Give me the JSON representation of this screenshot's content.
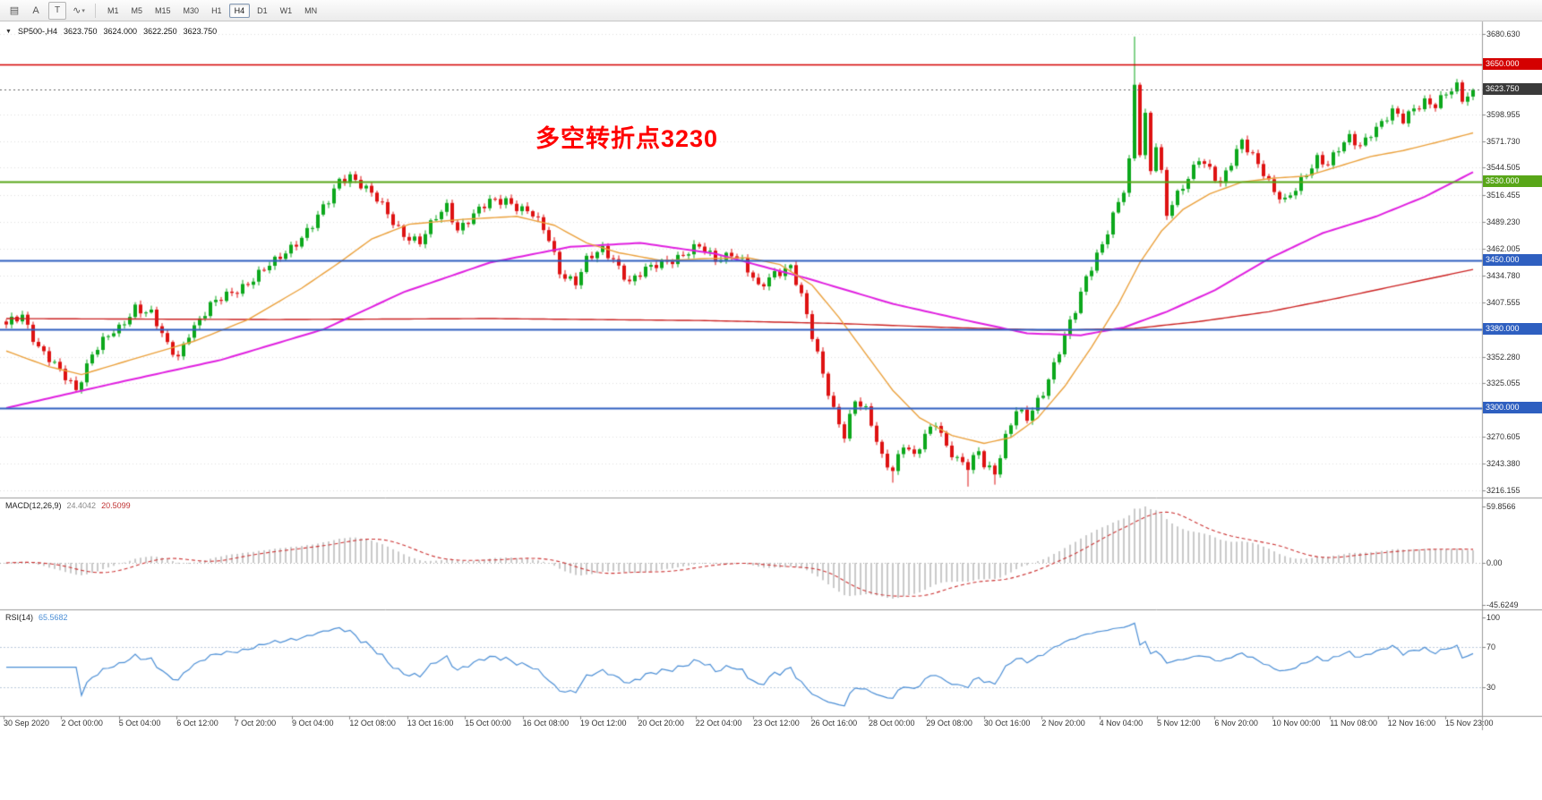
{
  "toolbar": {
    "tools": [
      {
        "name": "charts-list-icon",
        "glyph": "▤",
        "boxed": false,
        "caret": false
      },
      {
        "name": "cursor-tool-a-icon",
        "glyph": "A",
        "boxed": false,
        "caret": false
      },
      {
        "name": "text-tool-icon",
        "glyph": "T",
        "boxed": true,
        "caret": false
      },
      {
        "name": "shapes-tool-icon",
        "glyph": "∿",
        "boxed": false,
        "caret": true
      }
    ],
    "timeframes": [
      {
        "label": "M1",
        "active": false
      },
      {
        "label": "M5",
        "active": false
      },
      {
        "label": "M15",
        "active": false
      },
      {
        "label": "M30",
        "active": false
      },
      {
        "label": "H1",
        "active": false
      },
      {
        "label": "H4",
        "active": true
      },
      {
        "label": "D1",
        "active": false
      },
      {
        "label": "W1",
        "active": false
      },
      {
        "label": "MN",
        "active": false
      }
    ]
  },
  "chart": {
    "header": {
      "collapse_icon": "▼",
      "symbol_tf": "SP500-,H4",
      "open": "3623.750",
      "high": "3624.000",
      "low": "3622.250",
      "close": "3623.750"
    },
    "annotation": {
      "text": "多空转折点3230",
      "color": "#ff0000"
    },
    "y_axis": {
      "plain": [
        {
          "text": "3680.630",
          "price": 3680.63
        },
        {
          "text": "3598.955",
          "price": 3598.955
        },
        {
          "text": "3571.730",
          "price": 3571.73
        },
        {
          "text": "3544.505",
          "price": 3544.505
        },
        {
          "text": "3516.455",
          "price": 3516.455
        },
        {
          "text": "3489.230",
          "price": 3489.23
        },
        {
          "text": "3462.005",
          "price": 3462.005
        },
        {
          "text": "3434.780",
          "price": 3434.78
        },
        {
          "text": "3407.555",
          "price": 3407.555
        },
        {
          "text": "3352.280",
          "price": 3352.28
        },
        {
          "text": "3325.055",
          "price": 3325.055
        },
        {
          "text": "3270.605",
          "price": 3270.605
        },
        {
          "text": "3243.380",
          "price": 3243.38
        },
        {
          "text": "3216.155",
          "price": 3216.155
        }
      ],
      "badges": [
        {
          "text": "3650.000",
          "price": 3650.0,
          "color": "#d40000",
          "name": "resistance-3650-badge"
        },
        {
          "text": "3623.750",
          "price": 3623.75,
          "color": "#3a3a3a",
          "name": "current-price-badge"
        },
        {
          "text": "3530.000",
          "price": 3530.0,
          "color": "#58a618",
          "name": "support-3530-badge"
        },
        {
          "text": "3450.000",
          "price": 3450.0,
          "color": "#2e5fc0",
          "name": "level-3450-badge"
        },
        {
          "text": "3380.000",
          "price": 3380.0,
          "color": "#2e5fc0",
          "name": "level-3380-badge"
        },
        {
          "text": "3300.000",
          "price": 3300.0,
          "color": "#2e5fc0",
          "name": "level-3300-badge"
        }
      ]
    },
    "x_axis": {
      "labels": [
        "30 Sep 2020",
        "2 Oct 00:00",
        "5 Oct 04:00",
        "6 Oct 12:00",
        "7 Oct 20:00",
        "9 Oct 04:00",
        "12 Oct 08:00",
        "13 Oct 16:00",
        "15 Oct 00:00",
        "16 Oct 08:00",
        "19 Oct 12:00",
        "20 Oct 20:00",
        "22 Oct 04:00",
        "23 Oct 12:00",
        "26 Oct 16:00",
        "28 Oct 00:00",
        "29 Oct 08:00",
        "30 Oct 16:00",
        "2 Nov 20:00",
        "4 Nov 04:00",
        "5 Nov 12:00",
        "6 Nov 20:00",
        "10 Nov 00:00",
        "11 Nov 08:00",
        "12 Nov 16:00",
        "15 Nov 23:00"
      ]
    }
  },
  "indicators": {
    "macd": {
      "title": "MACD(12,26,9)",
      "value_main": "24.4042",
      "value_signal": "20.5099",
      "axis": [
        "59.8566",
        "0.00",
        "-45.6249"
      ],
      "fast": 12,
      "slow": 26,
      "signal": 9,
      "histogram_color": "#c9c9c9",
      "signal_color": "#cc3333"
    },
    "rsi": {
      "title": "RSI(14)",
      "value": "65.5682",
      "axis": [
        "100",
        "70",
        "30"
      ],
      "period": 14,
      "levels": [
        70,
        30
      ],
      "color": "#4c8fd6",
      "level_color": "#bccbdc"
    }
  },
  "chart_data": {
    "type": "candlestick",
    "symbol": "SP500-",
    "timeframe": "H4",
    "ohlc_current": {
      "open": 3623.75,
      "high": 3624.0,
      "low": 3622.25,
      "close": 3623.75
    },
    "ylim": [
      3216.155,
      3680.63
    ],
    "bars": 274,
    "current_price": 3623.75,
    "candle_up_color": "#0ca81c",
    "candle_down_color": "#de1212",
    "levels": [
      {
        "price": 3650.0,
        "color": "#d40000"
      },
      {
        "price": 3530.0,
        "color": "#58a618"
      },
      {
        "price": 3450.0,
        "color": "#2e5fc0"
      },
      {
        "price": 3380.0,
        "color": "#2e5fc0"
      },
      {
        "price": 3300.0,
        "color": "#2e5fc0"
      }
    ],
    "close_anchors": [
      [
        0,
        3385
      ],
      [
        3,
        3396
      ],
      [
        6,
        3362
      ],
      [
        9,
        3342
      ],
      [
        13,
        3320
      ],
      [
        16,
        3356
      ],
      [
        19,
        3372
      ],
      [
        21,
        3380
      ],
      [
        24,
        3404
      ],
      [
        27,
        3396
      ],
      [
        30,
        3362
      ],
      [
        32,
        3352
      ],
      [
        34,
        3378
      ],
      [
        38,
        3403
      ],
      [
        42,
        3418
      ],
      [
        46,
        3432
      ],
      [
        50,
        3448
      ],
      [
        54,
        3470
      ],
      [
        57,
        3486
      ],
      [
        60,
        3510
      ],
      [
        62,
        3532
      ],
      [
        64,
        3538
      ],
      [
        66,
        3528
      ],
      [
        69,
        3511
      ],
      [
        72,
        3490
      ],
      [
        74,
        3478
      ],
      [
        77,
        3468
      ],
      [
        80,
        3493
      ],
      [
        82,
        3506
      ],
      [
        84,
        3483
      ],
      [
        87,
        3496
      ],
      [
        90,
        3509
      ],
      [
        93,
        3513
      ],
      [
        95,
        3506
      ],
      [
        98,
        3496
      ],
      [
        101,
        3472
      ],
      [
        103,
        3440
      ],
      [
        106,
        3428
      ],
      [
        108,
        3449
      ],
      [
        111,
        3461
      ],
      [
        113,
        3453
      ],
      [
        116,
        3428
      ],
      [
        119,
        3439
      ],
      [
        122,
        3449
      ],
      [
        126,
        3456
      ],
      [
        129,
        3463
      ],
      [
        132,
        3452
      ],
      [
        135,
        3459
      ],
      [
        137,
        3448
      ],
      [
        140,
        3421
      ],
      [
        143,
        3439
      ],
      [
        146,
        3444
      ],
      [
        148,
        3412
      ],
      [
        150,
        3372
      ],
      [
        152,
        3336
      ],
      [
        154,
        3300
      ],
      [
        156,
        3272
      ],
      [
        158,
        3306
      ],
      [
        160,
        3296
      ],
      [
        161,
        3284
      ],
      [
        163,
        3252
      ],
      [
        165,
        3238
      ],
      [
        167,
        3262
      ],
      [
        169,
        3248
      ],
      [
        171,
        3272
      ],
      [
        173,
        3288
      ],
      [
        175,
        3262
      ],
      [
        177,
        3246
      ],
      [
        179,
        3238
      ],
      [
        181,
        3256
      ],
      [
        182,
        3244
      ],
      [
        184,
        3236
      ],
      [
        186,
        3270
      ],
      [
        188,
        3296
      ],
      [
        190,
        3288
      ],
      [
        193,
        3318
      ],
      [
        195,
        3345
      ],
      [
        197,
        3372
      ],
      [
        199,
        3398
      ],
      [
        201,
        3432
      ],
      [
        203,
        3458
      ],
      [
        204,
        3468
      ],
      [
        206,
        3496
      ],
      [
        208,
        3520
      ],
      [
        209,
        3548
      ],
      [
        210,
        3628
      ],
      [
        211,
        3560
      ],
      [
        212,
        3598
      ],
      [
        213,
        3545
      ],
      [
        214,
        3570
      ],
      [
        215,
        3540
      ],
      [
        216,
        3498
      ],
      [
        218,
        3515
      ],
      [
        220,
        3532
      ],
      [
        222,
        3556
      ],
      [
        224,
        3545
      ],
      [
        226,
        3528
      ],
      [
        228,
        3548
      ],
      [
        230,
        3570
      ],
      [
        232,
        3558
      ],
      [
        234,
        3542
      ],
      [
        236,
        3520
      ],
      [
        238,
        3508
      ],
      [
        240,
        3522
      ],
      [
        242,
        3540
      ],
      [
        244,
        3556
      ],
      [
        246,
        3548
      ],
      [
        248,
        3562
      ],
      [
        250,
        3574
      ],
      [
        252,
        3568
      ],
      [
        254,
        3582
      ],
      [
        256,
        3590
      ],
      [
        258,
        3600
      ],
      [
        260,
        3592
      ],
      [
        262,
        3606
      ],
      [
        264,
        3614
      ],
      [
        266,
        3608
      ],
      [
        268,
        3618
      ],
      [
        270,
        3626
      ],
      [
        271,
        3614
      ],
      [
        272,
        3620
      ],
      [
        273,
        3623.75
      ]
    ],
    "wick_overrides": [
      {
        "i": 210,
        "high": 3678
      },
      {
        "i": 165,
        "low": 3224
      },
      {
        "i": 179,
        "low": 3220
      },
      {
        "i": 184,
        "low": 3222
      }
    ],
    "ma": {
      "fast": {
        "color": "#eba13c",
        "width": 1.4,
        "anchors": [
          [
            0,
            3358
          ],
          [
            8,
            3342
          ],
          [
            14,
            3334
          ],
          [
            25,
            3352
          ],
          [
            35,
            3368
          ],
          [
            45,
            3390
          ],
          [
            55,
            3422
          ],
          [
            62,
            3448
          ],
          [
            68,
            3472
          ],
          [
            75,
            3487
          ],
          [
            85,
            3492
          ],
          [
            95,
            3495
          ],
          [
            102,
            3486
          ],
          [
            108,
            3468
          ],
          [
            114,
            3458
          ],
          [
            122,
            3450
          ],
          [
            130,
            3452
          ],
          [
            138,
            3453
          ],
          [
            144,
            3446
          ],
          [
            150,
            3425
          ],
          [
            155,
            3392
          ],
          [
            160,
            3355
          ],
          [
            165,
            3318
          ],
          [
            170,
            3290
          ],
          [
            176,
            3272
          ],
          [
            182,
            3264
          ],
          [
            187,
            3270
          ],
          [
            192,
            3290
          ],
          [
            197,
            3322
          ],
          [
            202,
            3362
          ],
          [
            207,
            3406
          ],
          [
            211,
            3448
          ],
          [
            215,
            3480
          ],
          [
            219,
            3502
          ],
          [
            224,
            3518
          ],
          [
            230,
            3530
          ],
          [
            236,
            3534
          ],
          [
            242,
            3536
          ],
          [
            248,
            3546
          ],
          [
            254,
            3556
          ],
          [
            260,
            3562
          ],
          [
            266,
            3570
          ],
          [
            273,
            3580
          ]
        ]
      },
      "mid": {
        "color": "#e020e0",
        "width": 2.0,
        "anchors": [
          [
            0,
            3300
          ],
          [
            20,
            3325
          ],
          [
            40,
            3349
          ],
          [
            59,
            3380
          ],
          [
            74,
            3418
          ],
          [
            90,
            3448
          ],
          [
            105,
            3464
          ],
          [
            118,
            3468
          ],
          [
            132,
            3457
          ],
          [
            149,
            3432
          ],
          [
            165,
            3406
          ],
          [
            178,
            3390
          ],
          [
            190,
            3376
          ],
          [
            200,
            3374
          ],
          [
            208,
            3382
          ],
          [
            216,
            3398
          ],
          [
            225,
            3420
          ],
          [
            235,
            3452
          ],
          [
            245,
            3478
          ],
          [
            255,
            3495
          ],
          [
            264,
            3515
          ],
          [
            273,
            3540
          ]
        ]
      },
      "slow": {
        "color": "#cc2222",
        "width": 1.4,
        "anchors": [
          [
            0,
            3391
          ],
          [
            50,
            3390
          ],
          [
            90,
            3391
          ],
          [
            130,
            3389
          ],
          [
            155,
            3386
          ],
          [
            175,
            3382
          ],
          [
            195,
            3379
          ],
          [
            210,
            3381
          ],
          [
            222,
            3388
          ],
          [
            235,
            3398
          ],
          [
            248,
            3412
          ],
          [
            260,
            3426
          ],
          [
            273,
            3441
          ]
        ]
      }
    }
  }
}
